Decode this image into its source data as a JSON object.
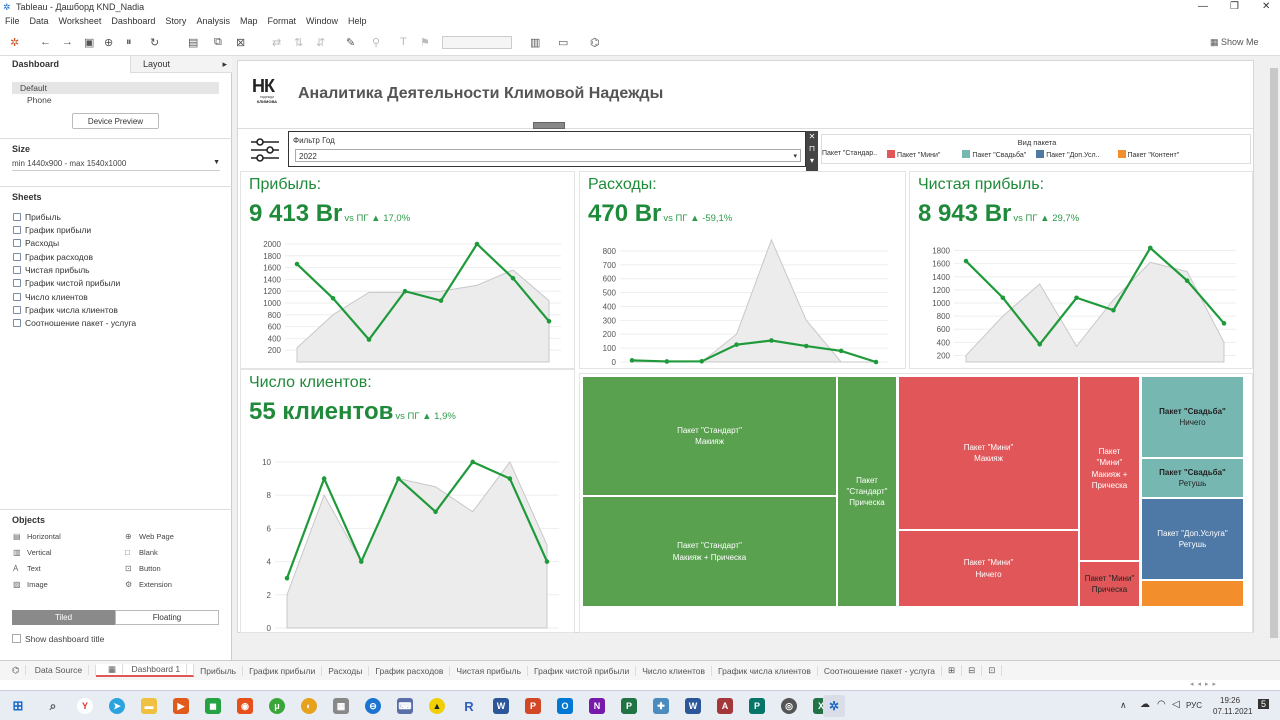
{
  "window": {
    "title": "Tableau - Дашборд KND_Nadia"
  },
  "menu": [
    "File",
    "Data",
    "Worksheet",
    "Dashboard",
    "Story",
    "Analysis",
    "Map",
    "Format",
    "Window",
    "Help"
  ],
  "toolbar": {
    "show_me": "Show Me"
  },
  "left_panel": {
    "tabs": {
      "dashboard": "Dashboard",
      "layout": "Layout"
    },
    "devices": {
      "default": "Default",
      "phone": "Phone",
      "preview_button": "Device Preview"
    },
    "size": {
      "title": "Size",
      "value": "min 1440x900 - max 1540x1000"
    },
    "sheets_title": "Sheets",
    "sheets": [
      "Прибыль",
      "График прибыли",
      "Расходы",
      "График расходов",
      "Чистая прибыль",
      "График чистой прибыли",
      "Число клиентов",
      "График числа клиентов",
      "Соотношение пакет - услуга"
    ],
    "objects_title": "Objects",
    "objects": {
      "horizontal": "Horizontal",
      "web_page": "Web Page",
      "vertical": "Vertical",
      "blank": "Blank",
      "text": "Text",
      "button": "Button",
      "image": "Image",
      "extension": "Extension"
    },
    "tiled": "Tiled",
    "floating": "Floating",
    "show_title": "Show dashboard title"
  },
  "dashboard": {
    "logo": {
      "letters": "НК",
      "line1": "надежда",
      "line2": "КЛИМОВА"
    },
    "title": "Аналитика Деятельности Климовой Надежды",
    "filter": {
      "label": "Фильтр Год",
      "value": "2022"
    },
    "legend": {
      "title": "Вид пакета",
      "items": [
        {
          "label": "Пакет \"Стандар..",
          "color": "#59a14f"
        },
        {
          "label": "Пакет \"Мини\"",
          "color": "#e15759"
        },
        {
          "label": "Пакет \"Свадьба\"",
          "color": "#76b7b2"
        },
        {
          "label": "Пакет \"Доп.Усл..",
          "color": "#4e79a7"
        },
        {
          "label": "Пакет \"Контент\"",
          "color": "#f28e2b"
        }
      ]
    },
    "kpis": {
      "profit": {
        "title": "Прибыль:",
        "value": "9 413 Br",
        "vs": "vs ПГ ▲ 17,0%"
      },
      "expenses": {
        "title": "Расходы:",
        "value": "470 Br",
        "vs": "vs ПГ ▲ -59,1%"
      },
      "net": {
        "title": "Чистая прибыль:",
        "value": "8 943 Br",
        "vs": "vs ПГ ▲ 29,7%"
      },
      "clients": {
        "title": "Число клиентов:",
        "value": "55 клиентов",
        "vs": "vs ПГ ▲ 1,9%"
      }
    },
    "treemap": [
      {
        "line1": "Пакет \"Стандарт\"",
        "line2": "Макияж",
        "color": "#59a14f"
      },
      {
        "line1": "Пакет \"Стандарт\"",
        "line2": "Макияж + Прическа",
        "color": "#59a14f"
      },
      {
        "line1": "Пакет \"Стандарт\"",
        "line2": "Прическа",
        "color": "#59a14f"
      },
      {
        "line1": "Пакет \"Мини\"",
        "line2": "Макияж",
        "color": "#e15759"
      },
      {
        "line1": "Пакет \"Мини\"",
        "line2": "Ничего",
        "color": "#e15759"
      },
      {
        "line1": "Пакет \"Мини\"",
        "line2": "Макияж + Прическа",
        "color": "#e15759"
      },
      {
        "line1": "Пакет \"Мини\"",
        "line2": "Прическа",
        "color": "#e15759"
      },
      {
        "line1": "Пакет \"Свадьба\"",
        "line2": "Ничего",
        "color": "#76b7b2"
      },
      {
        "line1": "Пакет \"Свадьба\"",
        "line2": "Ретушь",
        "color": "#76b7b2"
      },
      {
        "line1": "Пакет \"Доп.Услуга\"",
        "line2": "Ретушь",
        "color": "#4e79a7"
      },
      {
        "line1": "",
        "line2": "",
        "color": "#f28e2b"
      }
    ]
  },
  "chart_data": [
    {
      "type": "line",
      "name": "profit",
      "ylim": [
        0,
        2000
      ],
      "ticks": [
        200,
        400,
        600,
        800,
        1000,
        1200,
        1400,
        1600,
        1800,
        2000
      ],
      "series": [
        {
          "values": [
            1660,
            1080,
            380,
            1200,
            1040,
            2000,
            1420,
            690
          ]
        },
        {
          "values": [
            240,
            800,
            1180,
            1180,
            1200,
            1300,
            1560,
            1040
          ]
        }
      ]
    },
    {
      "type": "line",
      "name": "expenses",
      "ylim": [
        0,
        850
      ],
      "ticks": [
        0,
        100,
        200,
        300,
        400,
        500,
        600,
        700,
        800
      ],
      "series": [
        {
          "values": [
            12,
            4,
            5,
            125,
            155,
            115,
            80,
            0
          ]
        },
        {
          "values": [
            0,
            0,
            0,
            200,
            880,
            300,
            0,
            0
          ]
        }
      ]
    },
    {
      "type": "line",
      "name": "net",
      "ylim": [
        100,
        1900
      ],
      "ticks": [
        200,
        400,
        600,
        800,
        1000,
        1200,
        1400,
        1600,
        1800
      ],
      "series": [
        {
          "values": [
            1640,
            1080,
            370,
            1080,
            890,
            1840,
            1340,
            690
          ]
        },
        {
          "values": [
            200,
            800,
            1290,
            340,
            1050,
            1620,
            1480,
            400
          ]
        }
      ]
    },
    {
      "type": "line",
      "name": "clients",
      "ylim": [
        0,
        10.6
      ],
      "ticks": [
        0,
        2,
        4,
        6,
        8,
        10
      ],
      "series": [
        {
          "values": [
            3,
            9,
            4,
            9,
            7,
            10,
            9,
            4
          ]
        },
        {
          "values": [
            2,
            8,
            4,
            9,
            8.5,
            7,
            10,
            5
          ]
        }
      ]
    }
  ],
  "bottom_tabs": [
    "Data Source",
    "Dashboard 1",
    "Прибыль",
    "График прибыли",
    "Расходы",
    "График расходов",
    "Чистая прибыль",
    "График чистой прибыли",
    "Число клиентов",
    "График числа клиентов",
    "Соотношение пакет - услуга"
  ],
  "taskbar": {
    "lang": "РУС",
    "time": "19:26",
    "date": "07.11.2021",
    "notif": "5"
  }
}
